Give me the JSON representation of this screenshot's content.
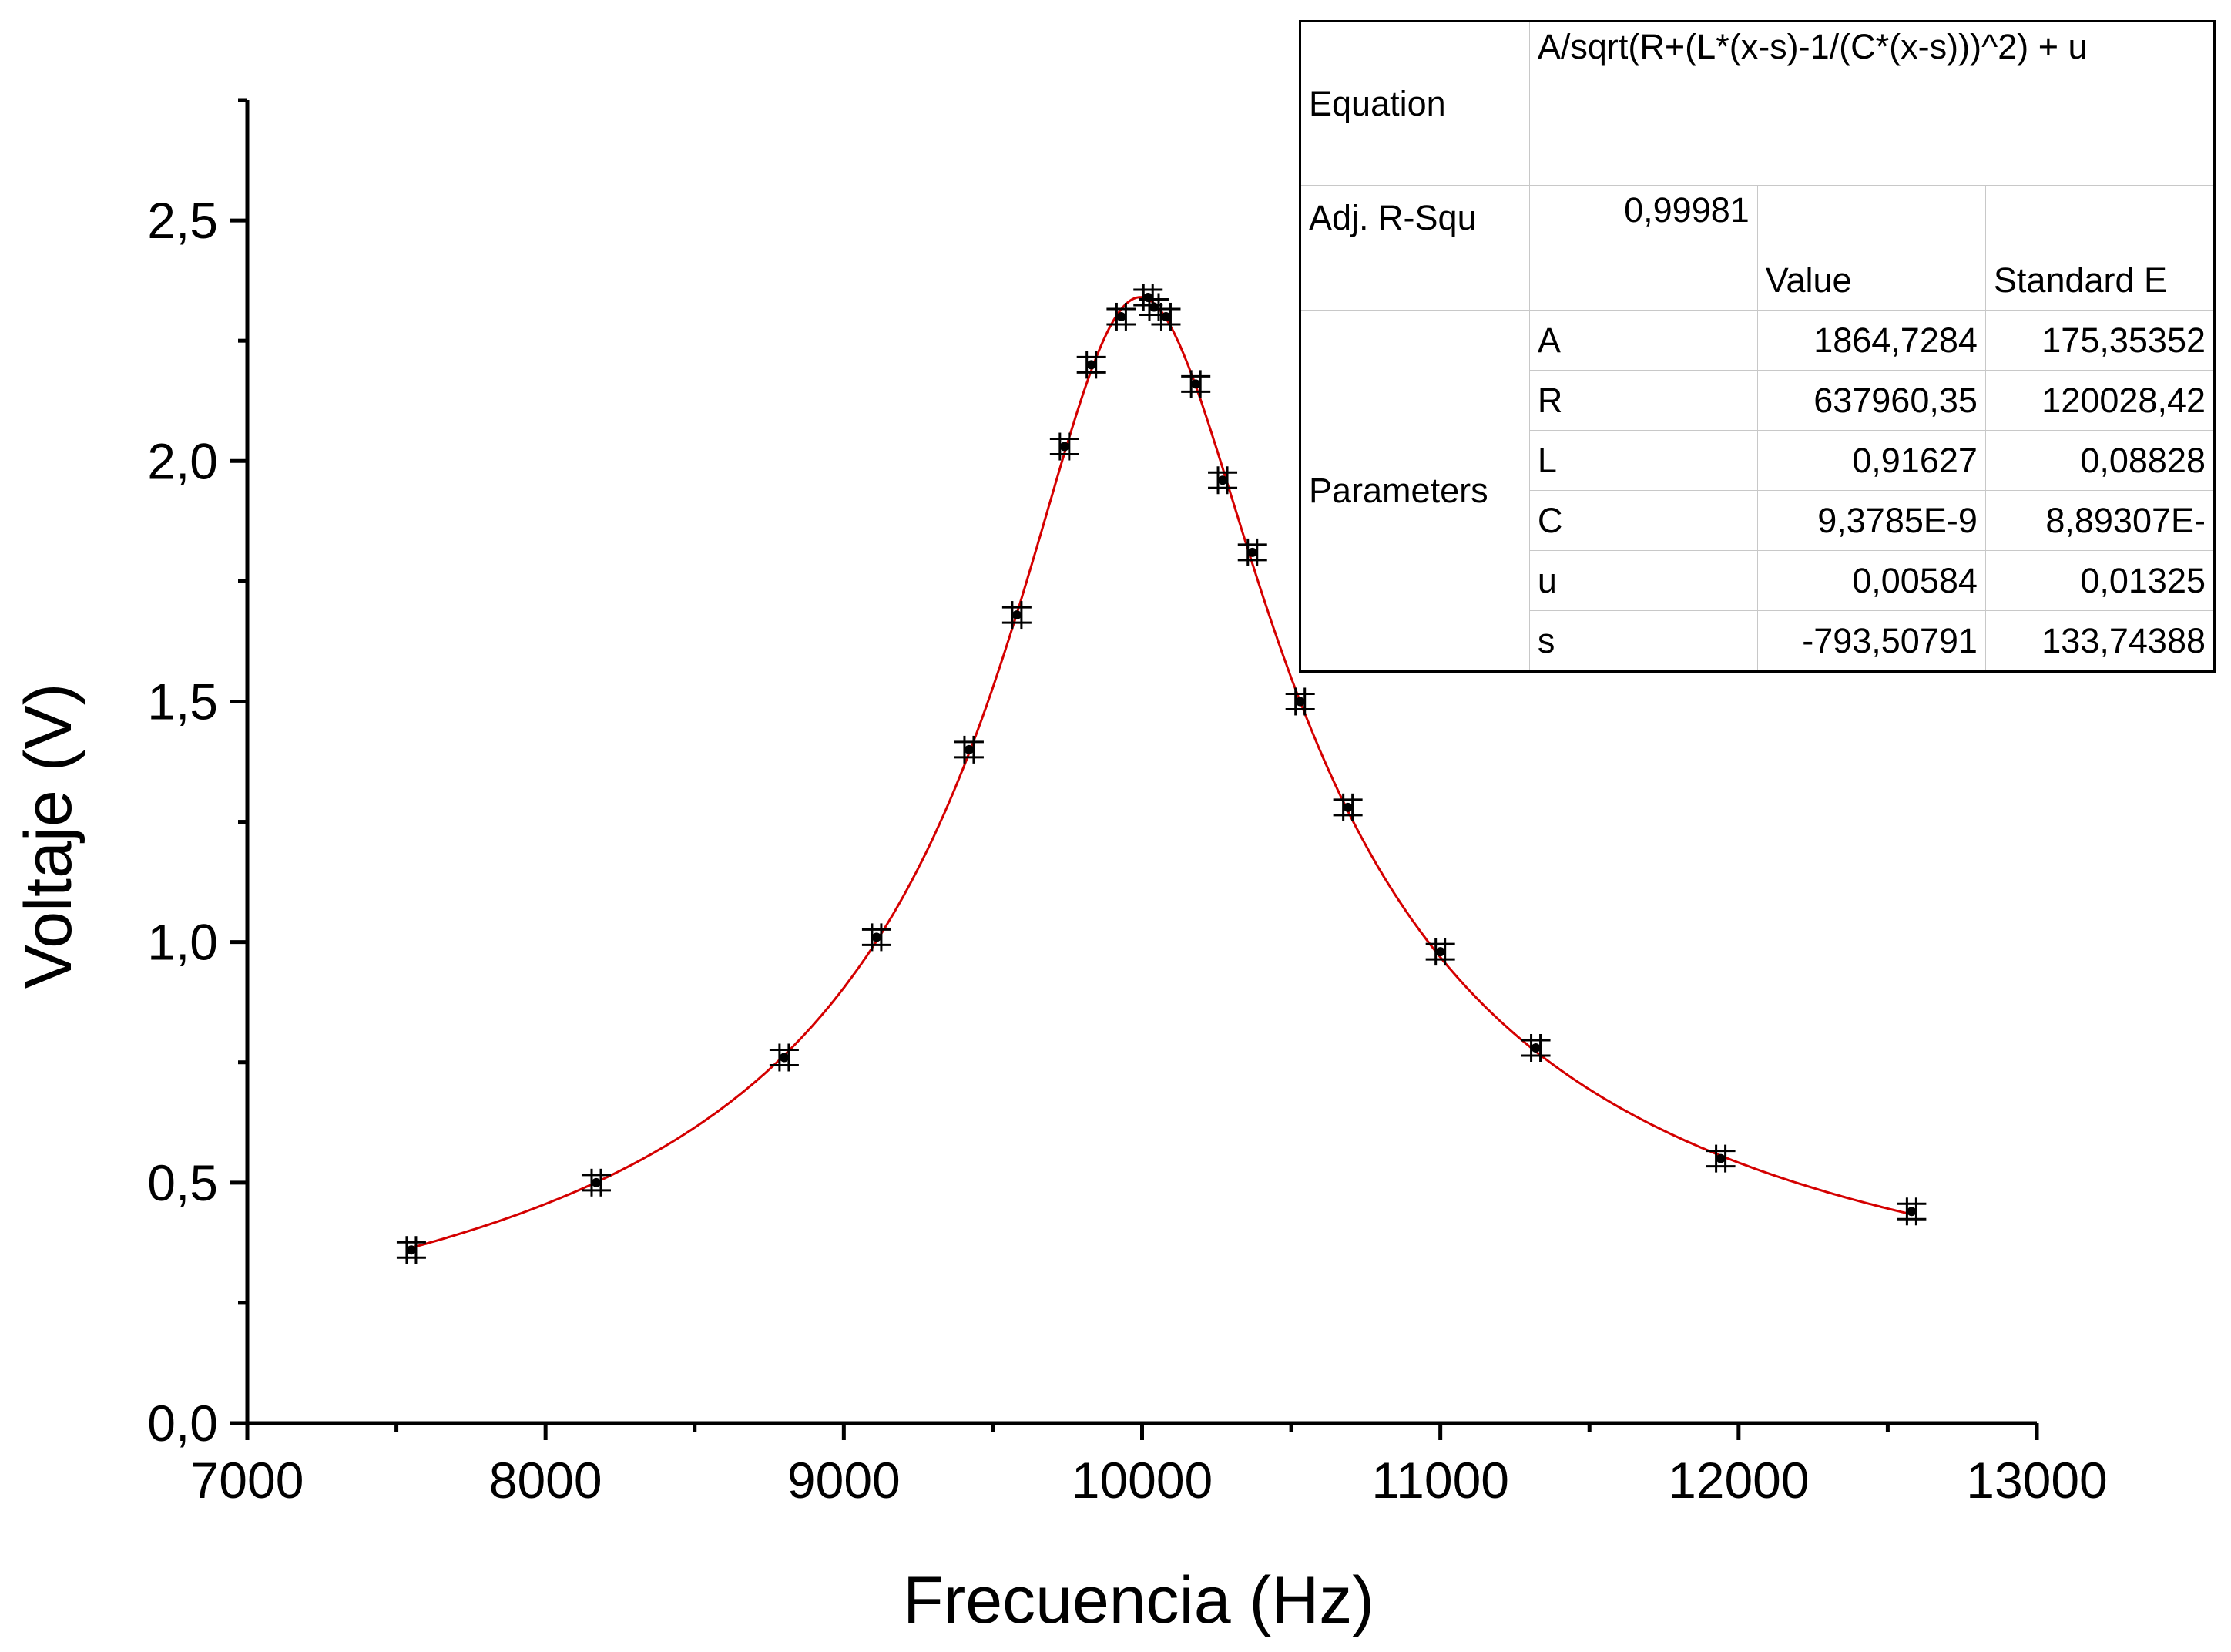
{
  "chart_data": {
    "type": "scatter",
    "xlabel": "Frecuencia (Hz)",
    "ylabel": "Voltaje (V)",
    "xlim": [
      7000,
      13000
    ],
    "ylim": [
      0,
      2.75
    ],
    "x_ticks": [
      7000,
      8000,
      9000,
      10000,
      11000,
      12000,
      13000
    ],
    "x_tick_labels": [
      "7000",
      "8000",
      "9000",
      "10000",
      "11000",
      "12000",
      "13000"
    ],
    "y_ticks": [
      0,
      0.5,
      1.0,
      1.5,
      2.0,
      2.5
    ],
    "y_tick_labels": [
      "0,0",
      "0,5",
      "1,0",
      "1,5",
      "2,0",
      "2,5"
    ],
    "grid": false,
    "marker_color": "#000000",
    "fit_color": "#d40000",
    "series": [
      {
        "marker": "plus-with-error-bars",
        "x": [
          7550,
          8170,
          8800,
          9110,
          9420,
          9580,
          9740,
          9830,
          9930,
          10020,
          10040,
          10080,
          10180,
          10270,
          10370,
          10530,
          10690,
          11000,
          11320,
          11940,
          12580
        ],
        "y": [
          0.36,
          0.5,
          0.76,
          1.01,
          1.4,
          1.68,
          2.03,
          2.2,
          2.3,
          2.34,
          2.32,
          2.3,
          2.16,
          1.96,
          1.81,
          1.5,
          1.28,
          0.98,
          0.78,
          0.55,
          0.44
        ]
      }
    ],
    "fit": {
      "model": "A/sqrt(R+(L*(x-s)-1/(C*(x-s)))^2) + u",
      "params": {
        "A": 1864.7284,
        "R": 637960.35,
        "L": 0.91627,
        "C": 9.3785e-09,
        "u": 0.00584,
        "s": -793.50791
      },
      "x_range": [
        7550,
        12580
      ]
    }
  },
  "fit_table": {
    "equation_label": "Equation",
    "equation": "A/sqrt(R+(L*(x-s)-1/(C*(x-s)))^2) + u",
    "adj_r_label": "Adj. R-Squ",
    "adj_r_value": "0,99981",
    "value_header": "Value",
    "std_header": "Standard E",
    "parameters_label": "Parameters",
    "params": [
      {
        "name": "A",
        "value": "1864,7284",
        "std": "175,35352"
      },
      {
        "name": "R",
        "value": "637960,35",
        "std": "120028,42"
      },
      {
        "name": "L",
        "value": "0,91627",
        "std": "0,08828"
      },
      {
        "name": "C",
        "value": "9,3785E-9",
        "std": "8,89307E-"
      },
      {
        "name": "u",
        "value": "0,00584",
        "std": "0,01325"
      },
      {
        "name": "s",
        "value": "-793,50791",
        "std": "133,74388"
      }
    ]
  }
}
